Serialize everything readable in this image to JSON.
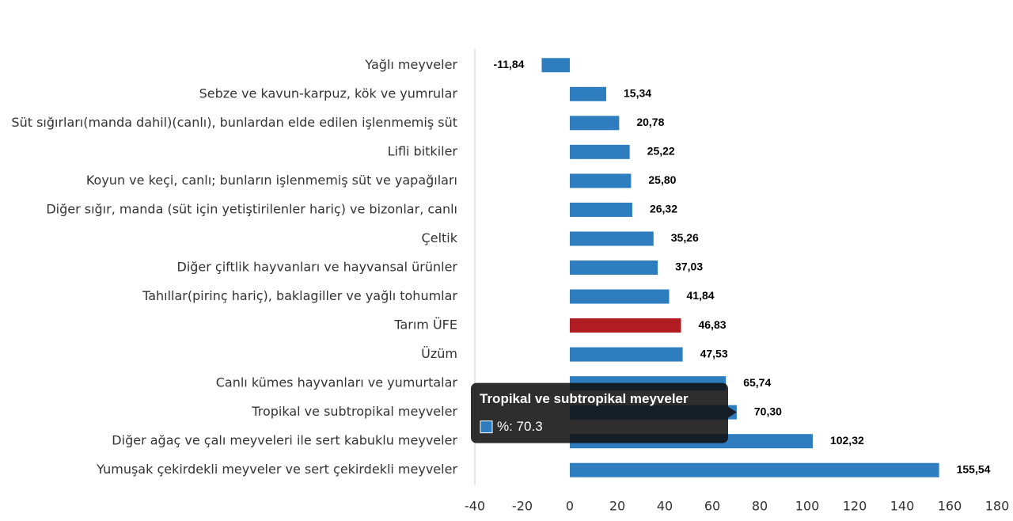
{
  "chart_data": {
    "type": "hbar",
    "categories": [
      "Yağlı meyveler",
      "Sebze ve kavun-karpuz, kök ve yumrular",
      "Süt sığırları(manda dahil)(canlı), bunlardan elde edilen işlenmemiş süt",
      "Lifli bitkiler",
      "Koyun ve keçi, canlı; bunların işlenmemiş süt ve yapağıları",
      "Diğer sığır, manda (süt için yetiştirilenler hariç) ve bizonlar, canlı",
      "Çeltik",
      "Diğer çiftlik hayvanları ve hayvansal ürünler",
      "Tahıllar(pirinç hariç), baklagiller ve yağlı tohumlar",
      "Tarım ÜFE",
      "Üzüm",
      "Canlı kümes hayvanları ve yumurtalar",
      "Tropikal ve subtropikal meyveler",
      "Diğer ağaç ve çalı meyveleri ile sert kabuklu meyveler",
      "Yumuşak çekirdekli meyveler ve sert çekirdekli meyveler"
    ],
    "values": [
      -11.84,
      15.34,
      20.78,
      25.22,
      25.8,
      26.32,
      35.26,
      37.03,
      41.84,
      46.83,
      47.53,
      65.74,
      70.3,
      102.32,
      155.54
    ],
    "value_labels": [
      "-11,84",
      "15,34",
      "20,78",
      "25,22",
      "25,80",
      "26,32",
      "35,26",
      "37,03",
      "41,84",
      "46,83",
      "47,53",
      "65,74",
      "70,30",
      "102,32",
      "155,54"
    ],
    "colors": [
      "#2e7ebf",
      "#2e7ebf",
      "#2e7ebf",
      "#2e7ebf",
      "#2e7ebf",
      "#2e7ebf",
      "#2e7ebf",
      "#2e7ebf",
      "#2e7ebf",
      "#b01c22",
      "#2e7ebf",
      "#2e7ebf",
      "#2e7ebf",
      "#2e7ebf",
      "#2e7ebf"
    ],
    "xlim": [
      -40,
      180
    ],
    "xticks": [
      -40,
      -20,
      0,
      20,
      40,
      60,
      80,
      100,
      120,
      140,
      160,
      180
    ],
    "tooltip": {
      "title": "Tropikal ve subtropikal meyveler",
      "text": "%: 70.3",
      "color": "#2e7ebf"
    }
  }
}
